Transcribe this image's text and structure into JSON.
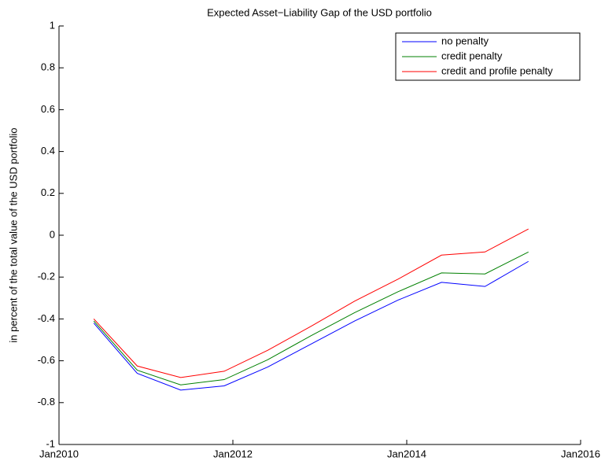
{
  "chart_data": {
    "type": "line",
    "title": "Expected Asset−Liability Gap of the USD portfolio",
    "y_label": "in percent of the total value of the USD portfolio",
    "x": [
      2010.4,
      2010.9,
      2011.4,
      2011.9,
      2012.4,
      2012.9,
      2013.4,
      2013.9,
      2014.4,
      2014.9,
      2015.4
    ],
    "series": [
      {
        "name": "no penalty",
        "color": "#0000ff",
        "values": [
          -0.42,
          -0.66,
          -0.74,
          -0.72,
          -0.63,
          -0.52,
          -0.41,
          -0.31,
          -0.225,
          -0.245,
          -0.125
        ]
      },
      {
        "name": "credit penalty",
        "color": "#008000",
        "values": [
          -0.41,
          -0.645,
          -0.715,
          -0.69,
          -0.595,
          -0.48,
          -0.37,
          -0.27,
          -0.18,
          -0.185,
          -0.08
        ]
      },
      {
        "name": "credit and profile penalty",
        "color": "#ff0000",
        "values": [
          -0.4,
          -0.625,
          -0.68,
          -0.65,
          -0.55,
          -0.435,
          -0.315,
          -0.21,
          -0.095,
          -0.08,
          0.03
        ]
      }
    ],
    "xlim": [
      2010,
      2016
    ],
    "xticks": [
      {
        "value": 2010,
        "label": "Jan2010"
      },
      {
        "value": 2012,
        "label": "Jan2012"
      },
      {
        "value": 2014,
        "label": "Jan2014"
      },
      {
        "value": 2016,
        "label": "Jan2016"
      }
    ],
    "ylim": [
      -1,
      1
    ],
    "yticks": [
      -1,
      -0.8,
      -0.6,
      -0.4,
      -0.2,
      0,
      0.2,
      0.4,
      0.6,
      0.8,
      1
    ],
    "legend": "top-right"
  }
}
